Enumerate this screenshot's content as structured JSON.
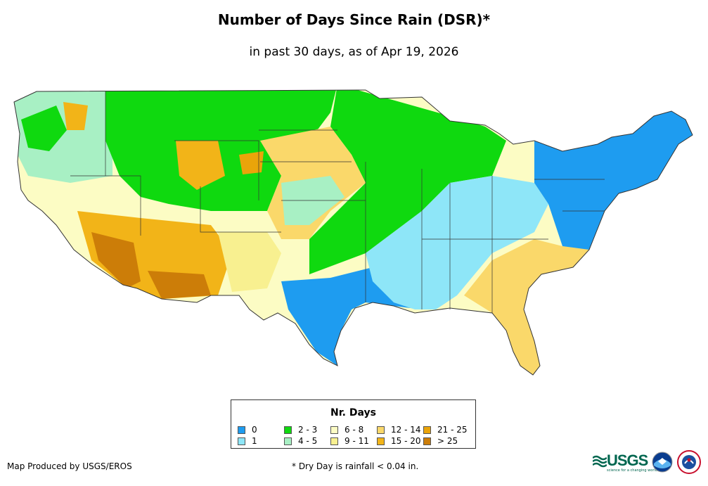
{
  "title": "Number of Days Since Rain (DSR)*",
  "subtitle": "in past 30 days, as of Apr 19, 2026",
  "legend": {
    "title": "Nr. Days",
    "items": [
      {
        "label": "0",
        "color": "#1e9cf0"
      },
      {
        "label": "1",
        "color": "#8ee6f8"
      },
      {
        "label": "2 - 3",
        "color": "#0fd90f"
      },
      {
        "label": "4 - 5",
        "color": "#a8f0c4"
      },
      {
        "label": "6 - 8",
        "color": "#fcfcc4"
      },
      {
        "label": "9 - 11",
        "color": "#f8f090"
      },
      {
        "label": "12 - 14",
        "color": "#fad86a"
      },
      {
        "label": "15 - 20",
        "color": "#f2b418"
      },
      {
        "label": "21 - 25",
        "color": "#eaa40a"
      },
      {
        "label": "> 25",
        "color": "#cc7d08"
      }
    ]
  },
  "footer": {
    "producer": "Map Produced by USGS/EROS",
    "note": "* Dry Day is rainfall < 0.04 in."
  },
  "logos": {
    "usgs": "USGS",
    "usgs_tagline": "science for a changing world"
  }
}
